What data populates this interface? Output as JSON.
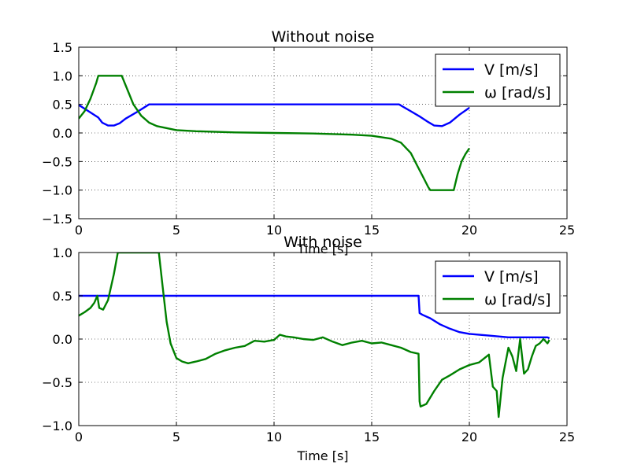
{
  "chart_data": [
    {
      "type": "line",
      "title": "Without noise",
      "xlabel": "Time [s]",
      "ylabel": "",
      "xlim": [
        0,
        25
      ],
      "ylim": [
        -1.5,
        1.5
      ],
      "xticks": [
        0,
        5,
        10,
        15,
        20,
        25
      ],
      "yticks": [
        -1.5,
        -1.0,
        -0.5,
        0.0,
        0.5,
        1.0,
        1.5
      ],
      "xtick_labels": [
        "0",
        "5",
        "10",
        "15",
        "20",
        "25"
      ],
      "ytick_labels": [
        "−1.5",
        "−1.0",
        "−0.5",
        "0.0",
        "0.5",
        "1.0",
        "1.5"
      ],
      "grid": true,
      "legend_position": "upper right",
      "series": [
        {
          "name": "V [m/s]",
          "color": "#0000ff",
          "x": [
            0,
            0.5,
            1.0,
            1.2,
            1.5,
            1.8,
            2.1,
            2.4,
            3.0,
            3.6,
            5,
            8,
            10,
            12,
            14,
            16.4,
            17.0,
            17.5,
            17.9,
            18.2,
            18.6,
            19.0,
            19.5,
            20.0
          ],
          "y": [
            0.49,
            0.38,
            0.27,
            0.18,
            0.13,
            0.13,
            0.17,
            0.25,
            0.37,
            0.5,
            0.5,
            0.5,
            0.5,
            0.5,
            0.5,
            0.5,
            0.38,
            0.28,
            0.19,
            0.13,
            0.12,
            0.18,
            0.32,
            0.44
          ]
        },
        {
          "name": "ω [rad/s]",
          "color": "#008000",
          "x": [
            0,
            0.3,
            0.6,
            0.9,
            1.0,
            2.2,
            2.5,
            2.8,
            3.2,
            3.6,
            4.0,
            5,
            6,
            8,
            10,
            12,
            14,
            15,
            16,
            16.5,
            17.0,
            17.3,
            17.6,
            17.9,
            18.0,
            19.2,
            19.4,
            19.6,
            19.8,
            20.0
          ],
          "y": [
            0.25,
            0.38,
            0.6,
            0.88,
            1.0,
            1.0,
            0.75,
            0.5,
            0.3,
            0.18,
            0.12,
            0.05,
            0.03,
            0.01,
            0.0,
            -0.01,
            -0.03,
            -0.05,
            -0.1,
            -0.17,
            -0.35,
            -0.55,
            -0.75,
            -0.95,
            -1.0,
            -1.0,
            -0.72,
            -0.5,
            -0.37,
            -0.27
          ]
        }
      ]
    },
    {
      "type": "line",
      "title": "With noise",
      "xlabel": "Time [s]",
      "ylabel": "",
      "xlim": [
        0,
        25
      ],
      "ylim": [
        -1.0,
        1.0
      ],
      "xticks": [
        0,
        5,
        10,
        15,
        20,
        25
      ],
      "yticks": [
        -1.0,
        -0.5,
        0.0,
        0.5,
        1.0
      ],
      "xtick_labels": [
        "0",
        "5",
        "10",
        "15",
        "20",
        "25"
      ],
      "ytick_labels": [
        "−1.0",
        "−0.5",
        "0.0",
        "0.5",
        "1.0"
      ],
      "grid": true,
      "legend_position": "upper right",
      "series": [
        {
          "name": "V [m/s]",
          "color": "#0000ff",
          "x": [
            0,
            5,
            10,
            15,
            17.4,
            17.45,
            17.6,
            18.0,
            18.5,
            19.0,
            19.5,
            20.0,
            21.0,
            22.0,
            23.0,
            24.0,
            24.1
          ],
          "y": [
            0.5,
            0.5,
            0.5,
            0.5,
            0.5,
            0.3,
            0.28,
            0.24,
            0.17,
            0.12,
            0.08,
            0.06,
            0.04,
            0.02,
            0.02,
            0.02,
            0.01
          ]
        },
        {
          "name": "ω [rad/s]",
          "color": "#008000",
          "x": [
            0,
            0.3,
            0.6,
            0.8,
            0.95,
            1.05,
            1.25,
            1.5,
            1.8,
            2.0,
            4.1,
            4.3,
            4.5,
            4.7,
            5.0,
            5.3,
            5.6,
            6.0,
            6.5,
            7.0,
            7.5,
            8.0,
            8.5,
            9.0,
            9.5,
            10.0,
            10.3,
            10.6,
            11.0,
            11.5,
            12.0,
            12.5,
            13.0,
            13.5,
            14.0,
            14.5,
            15.0,
            15.5,
            16.0,
            16.5,
            17.0,
            17.4,
            17.45,
            17.5,
            17.8,
            18.2,
            18.6,
            19.0,
            19.5,
            20.0,
            20.5,
            21.0,
            21.2,
            21.4,
            21.5,
            21.7,
            22.0,
            22.2,
            22.4,
            22.6,
            22.8,
            23.0,
            23.2,
            23.4,
            23.6,
            23.8,
            24.0,
            24.1
          ],
          "y": [
            0.27,
            0.31,
            0.36,
            0.42,
            0.5,
            0.36,
            0.34,
            0.45,
            0.75,
            1.0,
            1.0,
            0.6,
            0.2,
            -0.05,
            -0.22,
            -0.26,
            -0.28,
            -0.26,
            -0.23,
            -0.17,
            -0.13,
            -0.1,
            -0.08,
            -0.02,
            -0.03,
            -0.01,
            0.05,
            0.03,
            0.02,
            0.0,
            -0.01,
            0.02,
            -0.03,
            -0.07,
            -0.04,
            -0.02,
            -0.05,
            -0.04,
            -0.07,
            -0.1,
            -0.15,
            -0.17,
            -0.72,
            -0.78,
            -0.75,
            -0.6,
            -0.47,
            -0.42,
            -0.35,
            -0.3,
            -0.27,
            -0.18,
            -0.55,
            -0.6,
            -0.9,
            -0.45,
            -0.1,
            -0.2,
            -0.37,
            0.0,
            -0.4,
            -0.35,
            -0.2,
            -0.08,
            -0.05,
            0.0,
            -0.05,
            -0.01
          ]
        }
      ]
    }
  ]
}
